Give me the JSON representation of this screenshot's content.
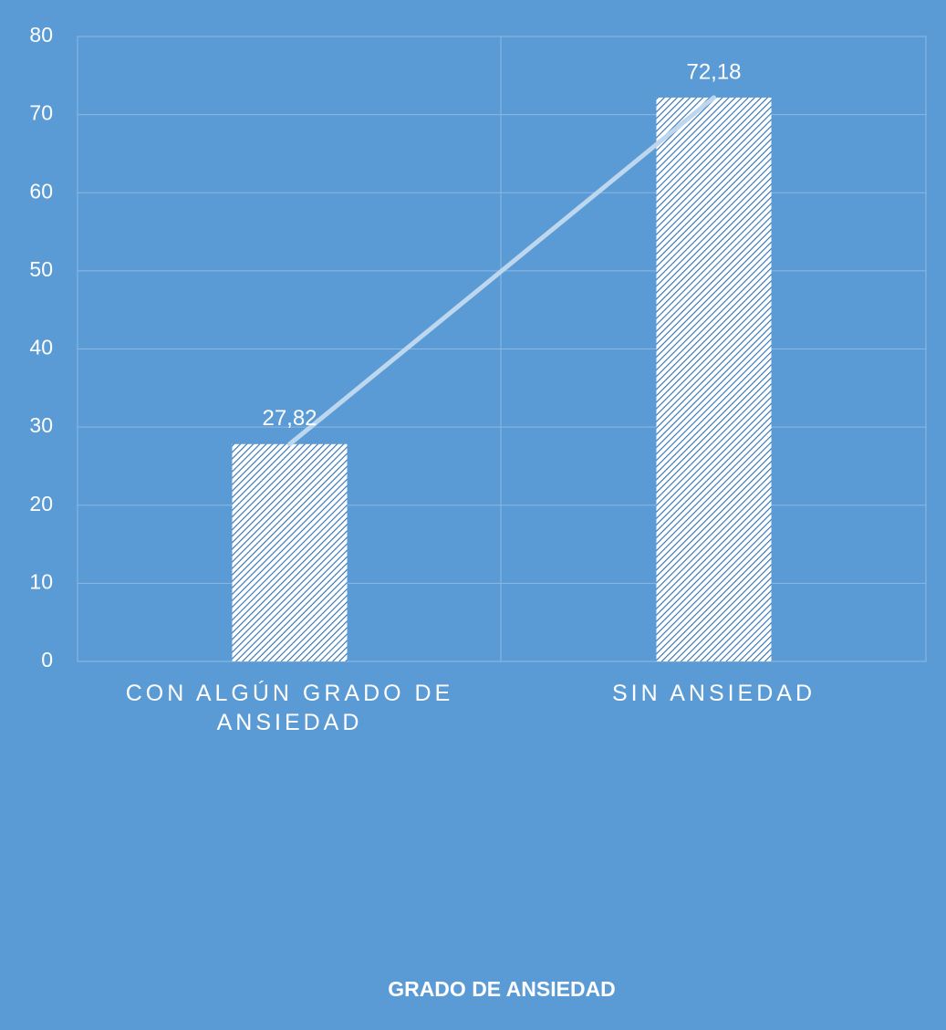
{
  "chart_data": {
    "type": "bar",
    "x_label": "GRADO DE ANSIEDAD",
    "categories": [
      "CON ALGÚN GRADO DE ANSIEDAD",
      "SIN ANSIEDAD"
    ],
    "values": [
      27.82,
      72.18
    ],
    "value_labels": [
      "27,82",
      "72,18"
    ],
    "color": "#2e6fb5",
    "line_color": "#bdd7ee",
    "ylim": [
      0,
      80
    ],
    "yticks": [
      0,
      10,
      20,
      30,
      40,
      50,
      60,
      70,
      80
    ],
    "grid": true
  }
}
